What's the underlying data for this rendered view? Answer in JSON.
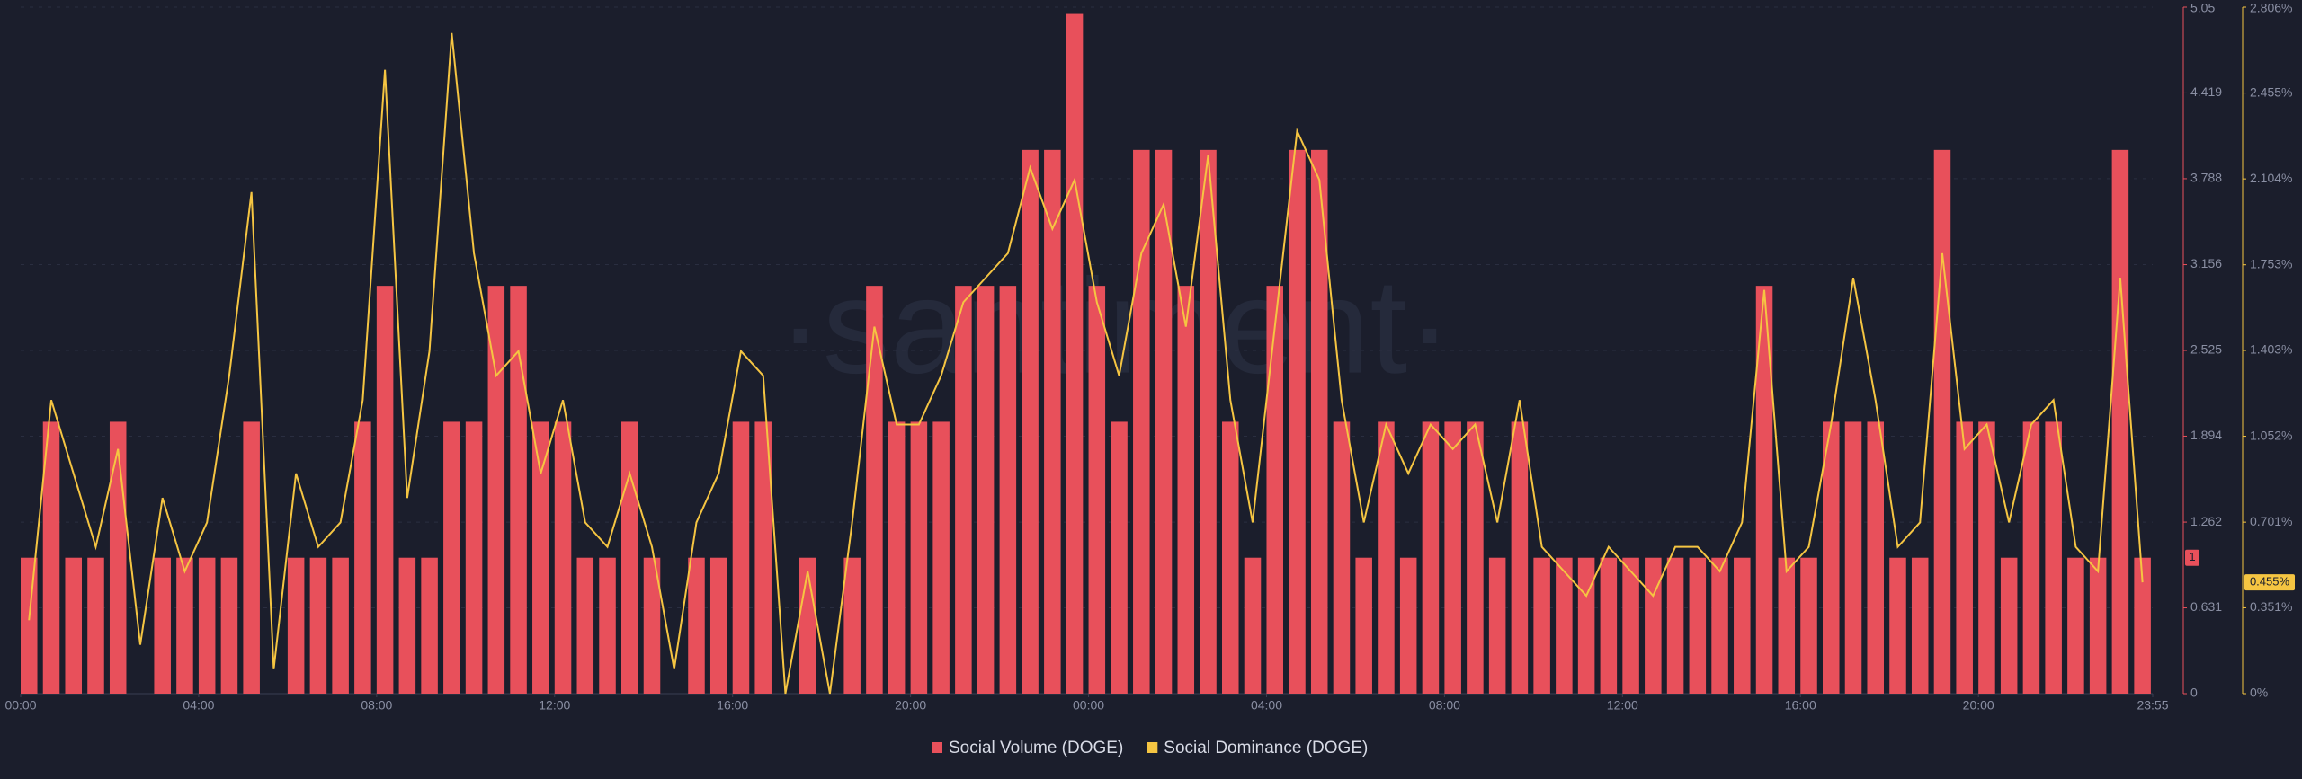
{
  "chart_data": {
    "type": "bar-line",
    "watermark": "·santiment·",
    "x": [
      0,
      0.5,
      1,
      1.5,
      2,
      2.5,
      3,
      3.5,
      4,
      4.5,
      5,
      5.5,
      6,
      6.5,
      7,
      7.5,
      8,
      8.5,
      9,
      9.5,
      10,
      10.5,
      11,
      11.5,
      12,
      12.5,
      13,
      13.5,
      14,
      14.5,
      15,
      15.5,
      16,
      16.5,
      17,
      17.5,
      18,
      18.5,
      19,
      19.5,
      20,
      20.5,
      21,
      21.5,
      22,
      22.5,
      23,
      23.5,
      24,
      24.5,
      25,
      25.5,
      26,
      26.5,
      27,
      27.5,
      28,
      28.5,
      29,
      29.5,
      30,
      30.5,
      31,
      31.5,
      32,
      32.5,
      33,
      33.5,
      34,
      34.5,
      35,
      35.5,
      36,
      36.5,
      37,
      37.5,
      38,
      38.5,
      39,
      39.5,
      40,
      40.5,
      41,
      41.5,
      42,
      42.5,
      43,
      43.5,
      44,
      44.5,
      45,
      45.5,
      46,
      46.5,
      47,
      47.5
    ],
    "xlim": [
      0,
      47.917
    ],
    "xticks": [
      {
        "value": 0,
        "label": "00:00"
      },
      {
        "value": 4,
        "label": "04:00"
      },
      {
        "value": 8,
        "label": "08:00"
      },
      {
        "value": 12,
        "label": "12:00"
      },
      {
        "value": 16,
        "label": "16:00"
      },
      {
        "value": 20,
        "label": "20:00"
      },
      {
        "value": 24,
        "label": "00:00"
      },
      {
        "value": 28,
        "label": "04:00"
      },
      {
        "value": 32,
        "label": "08:00"
      },
      {
        "value": 36,
        "label": "12:00"
      },
      {
        "value": 40,
        "label": "16:00"
      },
      {
        "value": 44,
        "label": "20:00"
      },
      {
        "value": 47.917,
        "label": "23:55"
      }
    ],
    "ylim": [
      0,
      5.05
    ],
    "yticks": [
      0,
      0.631,
      1.262,
      1.894,
      2.525,
      3.156,
      3.788,
      4.419,
      5.05
    ],
    "y2lim": [
      0,
      2.806
    ],
    "y2ticks": [
      {
        "value": 0,
        "label": "0%"
      },
      {
        "value": 0.351,
        "label": "0.351%"
      },
      {
        "value": 0.701,
        "label": "0.701%"
      },
      {
        "value": 1.052,
        "label": "1.052%"
      },
      {
        "value": 1.403,
        "label": "1.403%"
      },
      {
        "value": 1.753,
        "label": "1.753%"
      },
      {
        "value": 2.104,
        "label": "2.104%"
      },
      {
        "value": 2.455,
        "label": "2.455%"
      },
      {
        "value": 2.806,
        "label": "2.806%"
      }
    ],
    "grid": true,
    "series": [
      {
        "name": "Social Volume (DOGE)",
        "color": "#e8505b",
        "kind": "bar",
        "last_label": "1",
        "values": [
          1,
          2,
          1,
          1,
          2,
          0,
          1,
          1,
          1,
          1,
          2,
          0,
          1,
          1,
          1,
          2,
          3,
          1,
          1,
          2,
          2,
          3,
          3,
          2,
          2,
          1,
          1,
          2,
          1,
          0,
          1,
          1,
          2,
          2,
          0,
          1,
          0,
          1,
          3,
          2,
          2,
          2,
          3,
          3,
          3,
          4,
          4,
          5,
          3,
          2,
          4,
          4,
          3,
          4,
          2,
          1,
          3,
          4,
          4,
          2,
          1,
          2,
          1,
          2,
          2,
          2,
          1,
          2,
          1,
          1,
          1,
          1,
          1,
          1,
          1,
          1,
          1,
          1,
          3,
          1,
          1,
          2,
          2,
          2,
          1,
          1,
          4,
          2,
          2,
          1,
          2,
          2,
          1,
          1,
          4,
          1
        ]
      },
      {
        "name": "Social Dominance (DOGE)",
        "color": "#f5c542",
        "kind": "line",
        "axis": "y2",
        "last_label": "0.455%",
        "values": [
          0.3,
          1.2,
          0.9,
          0.6,
          1.0,
          0.2,
          0.8,
          0.5,
          0.7,
          1.3,
          2.05,
          0.1,
          0.9,
          0.6,
          0.7,
          1.2,
          2.55,
          0.8,
          1.4,
          2.7,
          1.8,
          1.3,
          1.4,
          0.9,
          1.2,
          0.7,
          0.6,
          0.9,
          0.6,
          0.1,
          0.7,
          0.9,
          1.4,
          1.3,
          0.0,
          0.5,
          0.0,
          0.7,
          1.5,
          1.1,
          1.1,
          1.3,
          1.6,
          1.7,
          1.8,
          2.15,
          1.9,
          2.1,
          1.6,
          1.3,
          1.8,
          2.0,
          1.5,
          2.2,
          1.2,
          0.7,
          1.5,
          2.3,
          2.1,
          1.2,
          0.7,
          1.1,
          0.9,
          1.1,
          1.0,
          1.1,
          0.7,
          1.2,
          0.6,
          0.5,
          0.4,
          0.6,
          0.5,
          0.4,
          0.6,
          0.6,
          0.5,
          0.7,
          1.65,
          0.5,
          0.6,
          1.1,
          1.7,
          1.2,
          0.6,
          0.7,
          1.8,
          1.0,
          1.1,
          0.7,
          1.1,
          1.2,
          0.6,
          0.5,
          1.7,
          0.455
        ]
      }
    ]
  }
}
